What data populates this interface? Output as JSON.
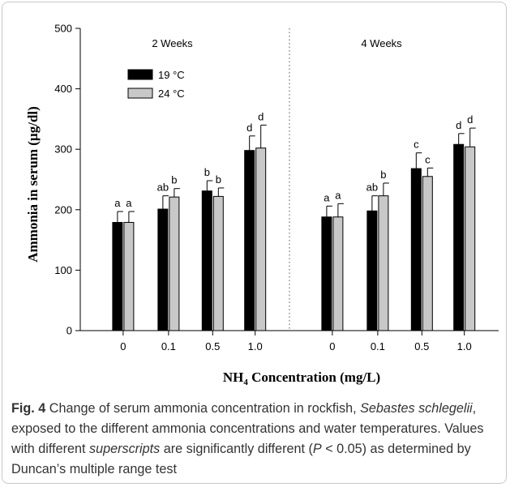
{
  "chart_data": {
    "type": "bar",
    "ylabel": "Ammonia in serum (µg/dl)",
    "xlabel": {
      "prefix": "NH",
      "subscript": "4",
      "suffix": " Concentration (mg/L)"
    },
    "ylim": [
      0,
      500
    ],
    "yticks": [
      "0",
      "100",
      "200",
      "300",
      "400",
      "500"
    ],
    "panels": [
      {
        "title": "2 Weeks",
        "categories": [
          "0",
          "0.1",
          "0.5",
          "1.0"
        ],
        "series": [
          {
            "name": "19 °C",
            "color": "#000000",
            "values": [
              179,
              201,
              231,
              298
            ],
            "errors": [
              18,
              22,
              17,
              24
            ],
            "letters": [
              "a",
              "ab",
              "b",
              "d"
            ]
          },
          {
            "name": "24 °C",
            "color": "#c8c8c8",
            "values": [
              179,
              221,
              222,
              302
            ],
            "errors": [
              18,
              14,
              14,
              38
            ],
            "letters": [
              "a",
              "b",
              "b",
              "d"
            ]
          }
        ]
      },
      {
        "title": "4 Weeks",
        "categories": [
          "0",
          "0.1",
          "0.5",
          "1.0"
        ],
        "series": [
          {
            "name": "19 °C",
            "color": "#000000",
            "values": [
              188,
              198,
              268,
              308
            ],
            "errors": [
              18,
              25,
              26,
              18
            ],
            "letters": [
              "a",
              "ab",
              "c",
              "d"
            ]
          },
          {
            "name": "24 °C",
            "color": "#c8c8c8",
            "values": [
              188,
              223,
              255,
              304
            ],
            "errors": [
              22,
              21,
              14,
              31
            ],
            "letters": [
              "a",
              "b",
              "c",
              "d"
            ]
          }
        ]
      }
    ],
    "legend": {
      "position": "top-left",
      "items": [
        {
          "label": "19 °C",
          "color": "#000000"
        },
        {
          "label": "24 °C",
          "color": "#c8c8c8"
        }
      ]
    },
    "divider": "dotted vertical line between panels",
    "grid": false
  },
  "caption": {
    "label": "Fig. 4",
    "t1": " Change of serum ammonia concentration in rockfish, ",
    "species": "Sebastes schlegelii",
    "t2": ", exposed to the different ammonia concentrations and water temperatures. Values with different ",
    "superscripts": "superscripts",
    "t3": " are significantly different (",
    "p": "P",
    "t4": " < 0.05) as determined by Duncan’s multiple range test"
  }
}
